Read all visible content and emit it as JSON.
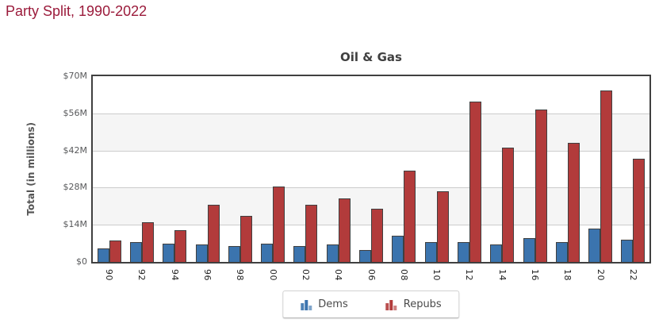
{
  "heading": {
    "text": "Party Split, 1990-2022"
  },
  "chart_data": {
    "type": "bar",
    "title": "Oil & Gas",
    "xlabel": "",
    "ylabel": "Total (in millions)",
    "ylim": [
      0,
      70
    ],
    "ytick_values": [
      70,
      56,
      42,
      28,
      14,
      0
    ],
    "ytick_labels": [
      "$70M",
      "$56M",
      "$42M",
      "$28M",
      "$14M",
      "$0"
    ],
    "grid": true,
    "plot_bands_alternating": true,
    "legend_position": "bottom-center",
    "categories": [
      "90",
      "92",
      "94",
      "96",
      "98",
      "00",
      "02",
      "04",
      "06",
      "08",
      "10",
      "12",
      "14",
      "16",
      "18",
      "20",
      "22"
    ],
    "series": [
      {
        "name": "Dems",
        "color": "#3B74AE",
        "values": [
          5,
          7.5,
          7,
          6.5,
          6,
          7,
          6,
          6.5,
          4.5,
          10,
          7.5,
          7.5,
          6.5,
          9,
          7.5,
          12.5,
          8.5
        ]
      },
      {
        "name": "Repubs",
        "color": "#B23B3B",
        "values": [
          8,
          15,
          12,
          21.5,
          17.5,
          28.5,
          21.5,
          24,
          20,
          34.5,
          26.5,
          60.5,
          43,
          57.5,
          45,
          64.5,
          39
        ]
      }
    ]
  },
  "colors": {
    "heading": "#9B1B3B",
    "chart_title": "#404040",
    "axis_border": "#404040",
    "gridline": "#CCCCCC",
    "band_gray": "#F5F5F5",
    "band_white": "#FFFFFF",
    "y_tick_label": "#58595B",
    "x_tick_label": "#1F1F1F",
    "bar_border": "#404040"
  }
}
